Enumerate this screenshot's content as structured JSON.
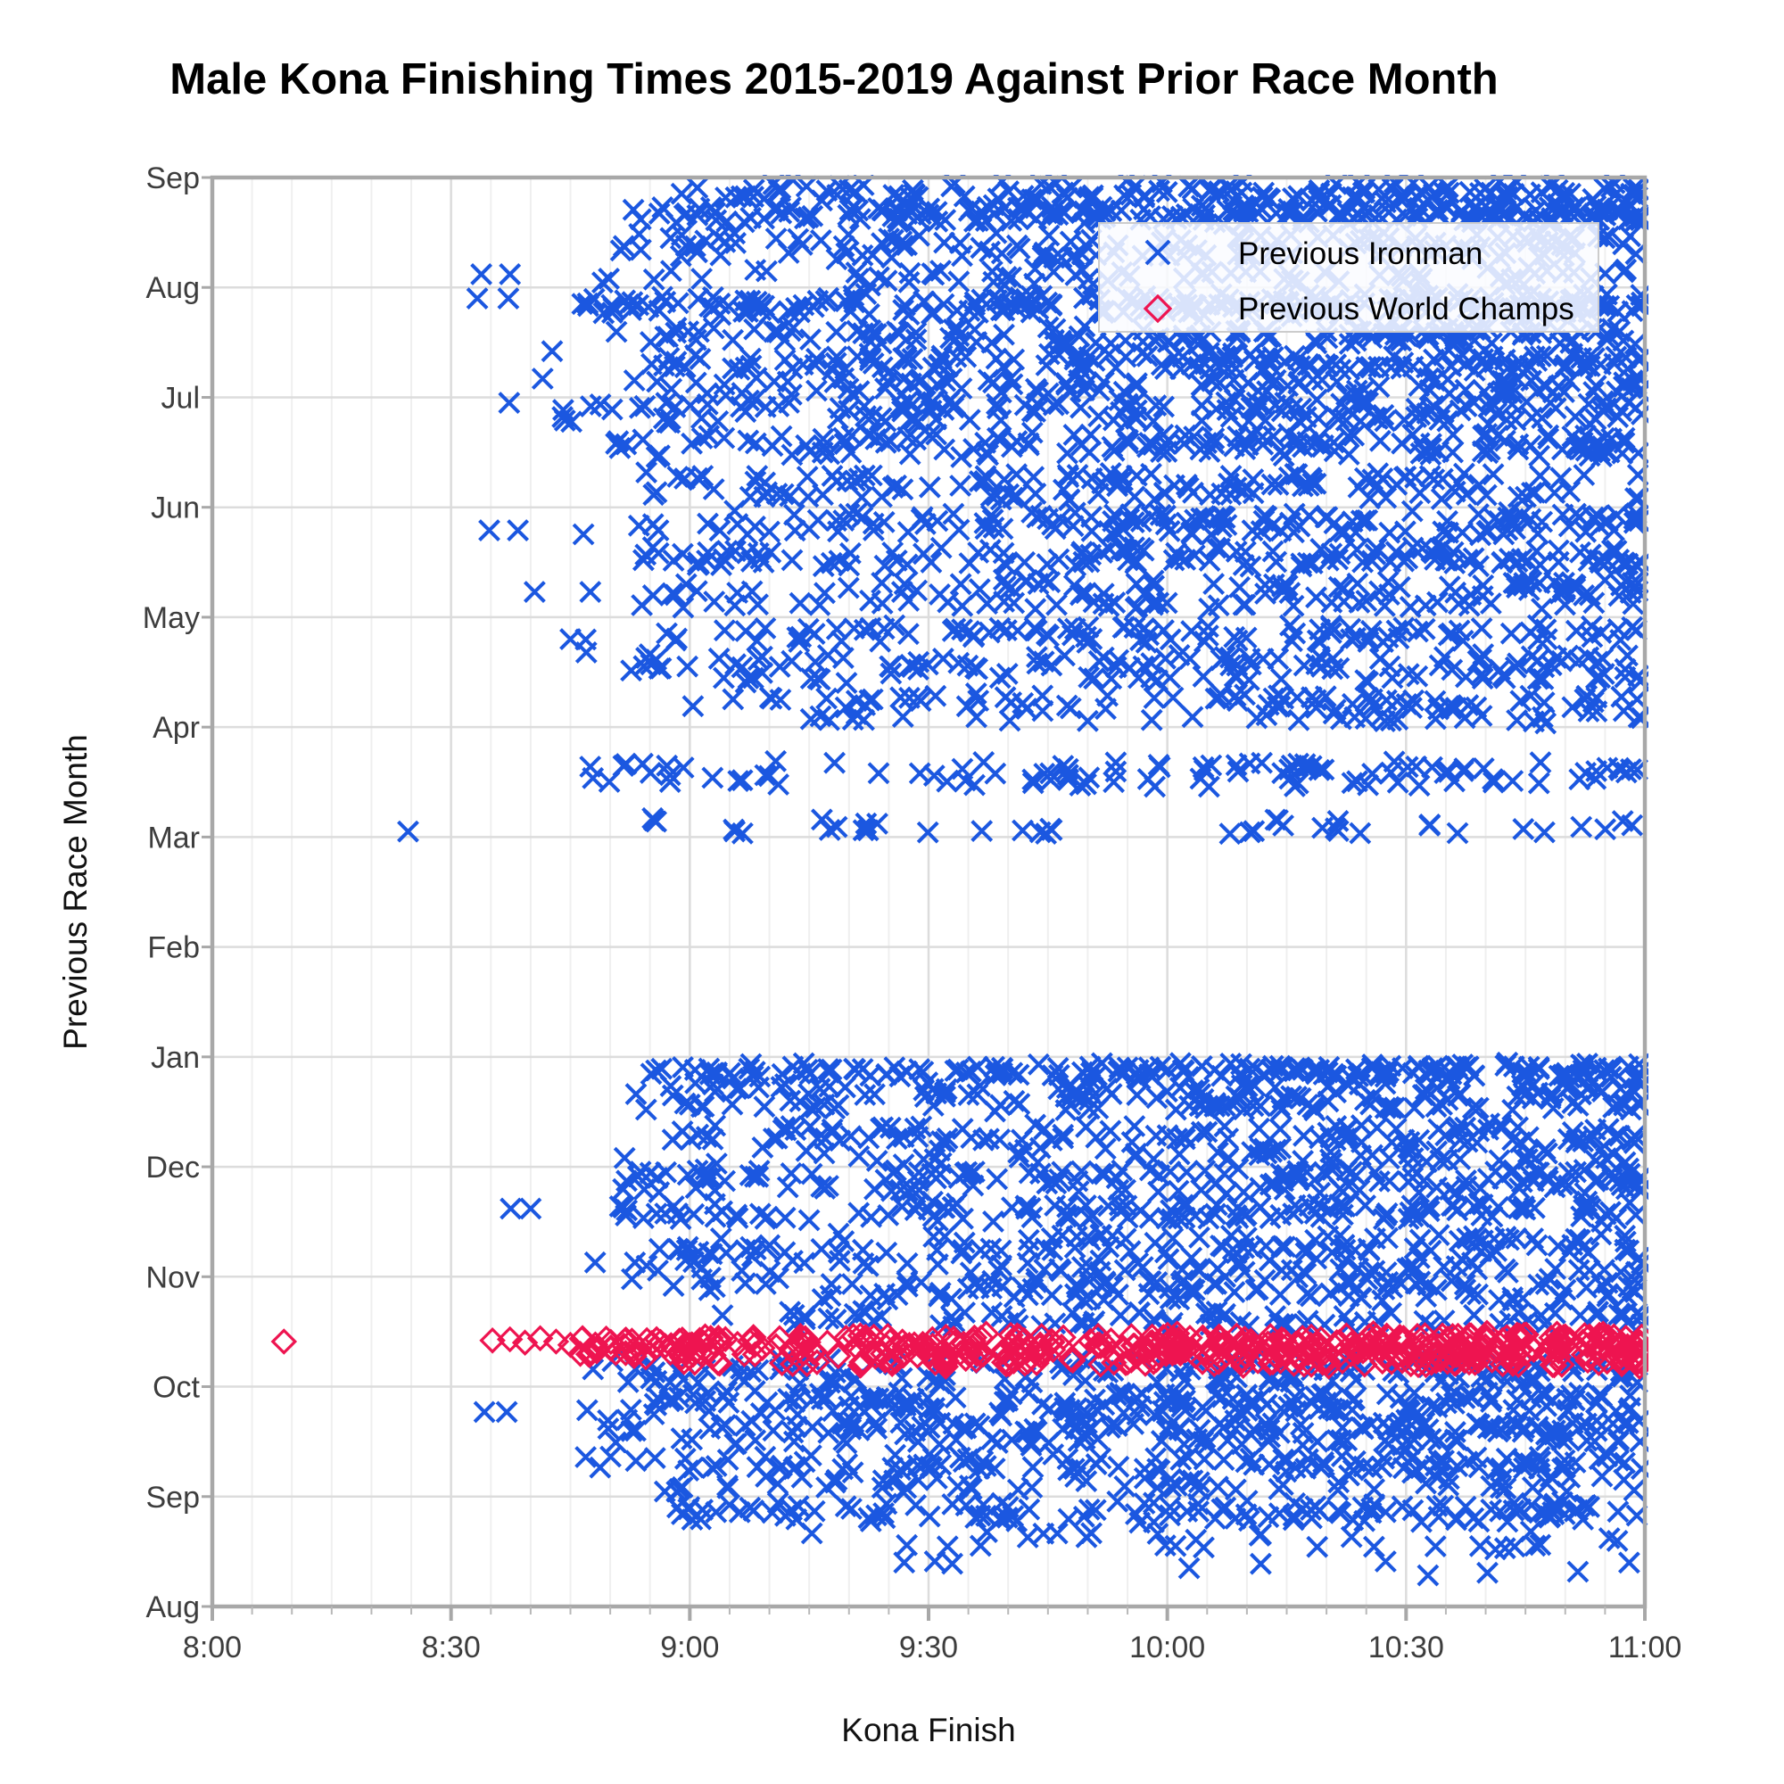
{
  "figure": {
    "title": "Male Kona Finishing Times 2015-2019 Against Prior Race Month",
    "background": "#ffffff"
  },
  "chart_data": {
    "type": "scatter",
    "title": "Male Kona Finishing Times 2015-2019 Against Prior Race Month",
    "xlabel": "Kona Finish",
    "ylabel": "Previous Race Month",
    "x_ticks": [
      "8:00",
      "8:30",
      "9:00",
      "9:30",
      "10:00",
      "10:30",
      "11:00"
    ],
    "x_range_minutes_after_8am": [
      0,
      180
    ],
    "x_major_tick_minutes": 30,
    "x_minor_tick_minutes": 5,
    "y_categories_bottom_to_top": [
      "Aug",
      "Sep",
      "Oct",
      "Nov",
      "Dec",
      "Jan",
      "Feb",
      "Mar",
      "Apr",
      "May",
      "Jun",
      "Jul",
      "Aug",
      "Sep"
    ],
    "grid": true,
    "legend_position": "top-right",
    "style": {
      "blue": "#1b57e0",
      "red": "#ee1450",
      "spine": "#a8a8a8",
      "grid_major": "#dcdcdc",
      "grid_minor": "#efefef",
      "tick": "#a8a8a8",
      "tick_minor": "#b8b8b8",
      "tick_label": "#3d3d3d",
      "legend_bg": "rgba(250,252,255,0.85)",
      "legend_border": "#cccccc"
    },
    "seed": 20151019,
    "series": [
      {
        "name": "Previous Ironman",
        "marker": "x",
        "color": "#1b57e0",
        "jitter": 0.05,
        "clusters": [
          {
            "rows": [
              12.62,
              12.68,
              12.72
            ],
            "x": [
              51,
              180
            ],
            "n": 210,
            "skew": 1.35
          },
          {
            "rows": [
              12.82,
              12.88
            ],
            "x": [
              55,
              180
            ],
            "n": 110,
            "skew": 1.25
          },
          {
            "rows": [
              12.3,
              12.38,
              12.45
            ],
            "x": [
              48,
              180
            ],
            "n": 130,
            "skew": 1.25
          },
          {
            "rows": [
              12.06,
              12.14
            ],
            "x": [
              46,
              180
            ],
            "n": 70,
            "skew": 1.2
          },
          {
            "rows": [
              12.94
            ],
            "x": [
              70,
              180
            ],
            "n": 25,
            "skew": 1.2
          },
          {
            "rows": [
              11.78,
              11.84,
              11.9
            ],
            "x": [
              44,
              180
            ],
            "n": 230,
            "skew": 1.25
          },
          {
            "rows": [
              11.52,
              11.6
            ],
            "x": [
              50,
              180
            ],
            "n": 140,
            "skew": 1.25
          },
          {
            "rows": [
              11.28,
              11.36
            ],
            "x": [
              48,
              180
            ],
            "n": 150,
            "skew": 1.2
          },
          {
            "rows": [
              11.06,
              11.14
            ],
            "x": [
              52,
              180
            ],
            "n": 110,
            "skew": 1.2
          },
          {
            "rows": [
              10.8,
              10.88,
              10.94
            ],
            "x": [
              44,
              180
            ],
            "n": 150,
            "skew": 1.2
          },
          {
            "rows": [
              10.5,
              10.58,
              10.64
            ],
            "x": [
              50,
              180
            ],
            "n": 150,
            "skew": 1.25
          },
          {
            "rows": [
              10.1,
              10.2,
              10.28
            ],
            "x": [
              52,
              180
            ],
            "n": 130,
            "skew": 1.25
          },
          {
            "rows": [
              9.78,
              9.86,
              9.92
            ],
            "x": [
              46,
              180
            ],
            "n": 140,
            "skew": 1.2
          },
          {
            "rows": [
              9.5,
              9.6
            ],
            "x": [
              52,
              180
            ],
            "n": 130,
            "skew": 1.25
          },
          {
            "rows": [
              9.12,
              9.22,
              9.3
            ],
            "x": [
              48,
              180
            ],
            "n": 130,
            "skew": 1.25
          },
          {
            "rows": [
              8.8,
              8.88
            ],
            "x": [
              45,
              180
            ],
            "n": 100,
            "skew": 1.2
          },
          {
            "rows": [
              8.45,
              8.55,
              8.62
            ],
            "x": [
              52,
              180
            ],
            "n": 130,
            "skew": 1.25
          },
          {
            "rows": [
              8.08,
              8.18,
              8.26
            ],
            "x": [
              54,
              180
            ],
            "n": 110,
            "skew": 1.3
          },
          {
            "rows": [
              7.5,
              7.58,
              7.65
            ],
            "x": [
              44,
              180
            ],
            "n": 100,
            "skew": 1.15
          },
          {
            "rows": [
              7.06,
              7.14
            ],
            "x": [
              50,
              180
            ],
            "n": 40,
            "skew": 1.15
          },
          {
            "rows": [
              4.84,
              4.9
            ],
            "x": [
              55,
              180
            ],
            "n": 170,
            "skew": 1.2
          },
          {
            "rows": [
              4.55,
              4.64,
              4.72
            ],
            "x": [
              52,
              180
            ],
            "n": 160,
            "skew": 1.2
          },
          {
            "rows": [
              4.25,
              4.35
            ],
            "x": [
              56,
              180
            ],
            "n": 110,
            "skew": 1.25
          },
          {
            "rows": [
              4.06,
              4.14
            ],
            "x": [
              60,
              180
            ],
            "n": 60,
            "skew": 1.25
          },
          {
            "rows": [
              3.8,
              3.88,
              3.94
            ],
            "x": [
              50,
              180
            ],
            "n": 150,
            "skew": 1.2
          },
          {
            "rows": [
              3.55,
              3.64
            ],
            "x": [
              48,
              180
            ],
            "n": 130,
            "skew": 1.2
          },
          {
            "rows": [
              3.25,
              3.35
            ],
            "x": [
              54,
              180
            ],
            "n": 110,
            "skew": 1.25
          },
          {
            "rows": [
              3.06,
              3.14
            ],
            "x": [
              52,
              180
            ],
            "n": 70,
            "skew": 1.2
          },
          {
            "rows": [
              2.82,
              2.9,
              2.96
            ],
            "x": [
              52,
              180
            ],
            "n": 120,
            "skew": 1.3
          },
          {
            "rows": [
              2.58,
              2.66
            ],
            "x": [
              62,
              180
            ],
            "n": 80,
            "skew": 1.35
          },
          {
            "rows": [
              2.06,
              2.14,
              2.22
            ],
            "x": [
              47,
              180
            ],
            "n": 140,
            "skew": 1.25
          },
          {
            "rows": [
              1.78,
              1.86,
              1.92
            ],
            "x": [
              44,
              180
            ],
            "n": 170,
            "skew": 1.2
          },
          {
            "rows": [
              1.5,
              1.6,
              1.66
            ],
            "x": [
              48,
              180
            ],
            "n": 170,
            "skew": 1.2
          },
          {
            "rows": [
              1.26,
              1.34
            ],
            "x": [
              46,
              180
            ],
            "n": 110,
            "skew": 1.25
          },
          {
            "rows": [
              1.08,
              1.16
            ],
            "x": [
              56,
              180
            ],
            "n": 60,
            "skew": 1.25
          },
          {
            "rows": [
              0.8,
              0.86,
              0.92
            ],
            "x": [
              58,
              180
            ],
            "n": 120,
            "skew": 1.15
          },
          {
            "rows": [
              0.55,
              0.65
            ],
            "x": [
              68,
              180
            ],
            "n": 30,
            "skew": 1.2
          },
          {
            "rows": [
              0.3,
              0.4
            ],
            "x": [
              75,
              180
            ],
            "n": 10,
            "skew": 1.2
          }
        ],
        "points": [
          [
            33.8,
            12.12
          ],
          [
            37.4,
            12.12
          ],
          [
            33.3,
            11.9
          ],
          [
            37.2,
            11.9
          ],
          [
            42.7,
            11.42
          ],
          [
            41.5,
            11.17
          ],
          [
            37.3,
            10.95
          ],
          [
            44.0,
            10.82
          ],
          [
            34.8,
            9.79
          ],
          [
            38.4,
            9.79
          ],
          [
            40.5,
            9.23
          ],
          [
            47.5,
            9.23
          ],
          [
            45.0,
            8.8
          ],
          [
            47.0,
            8.68
          ],
          [
            24.6,
            7.05
          ],
          [
            51.8,
            4.08
          ],
          [
            37.5,
            3.62
          ],
          [
            40.0,
            3.62
          ],
          [
            48.1,
            3.13
          ],
          [
            53.1,
            3.13
          ],
          [
            34.2,
            1.77
          ],
          [
            37.0,
            1.77
          ],
          [
            59.0,
            0.84
          ],
          [
            60.3,
            0.79
          ],
          [
            61.6,
            0.88
          ]
        ]
      },
      {
        "name": "Previous World Champs",
        "marker": "diamond",
        "color": "#ee1450",
        "jitter": 0.04,
        "clusters": [
          {
            "rows": [
              2.3,
              2.36,
              2.42
            ],
            "x": [
              46,
              62
            ],
            "n": 45,
            "skew": 1.0
          },
          {
            "rows": [
              2.22,
              2.3,
              2.38,
              2.45
            ],
            "x": [
              55,
              180
            ],
            "n": 460,
            "skew": 1.3
          }
        ],
        "points": [
          [
            9.0,
            2.41
          ],
          [
            35.2,
            2.42
          ],
          [
            37.4,
            2.43
          ],
          [
            39.3,
            2.4
          ],
          [
            41.2,
            2.44
          ],
          [
            43.2,
            2.41
          ],
          [
            45.0,
            2.38
          ]
        ]
      }
    ]
  }
}
